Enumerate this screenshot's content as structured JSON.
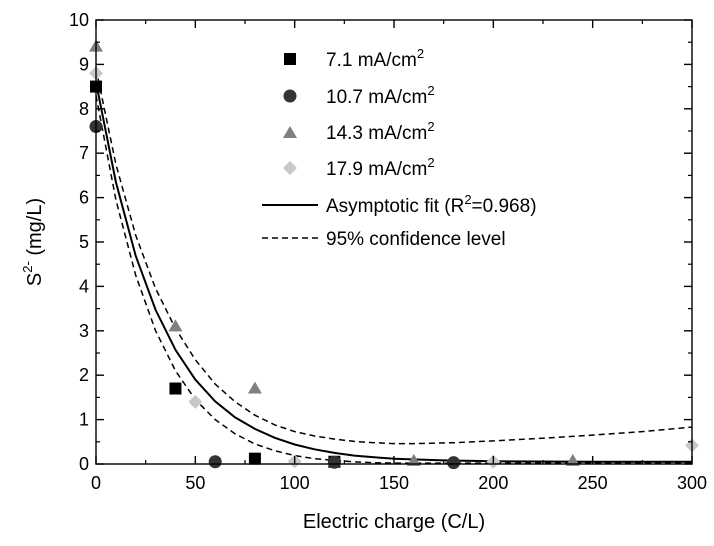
{
  "chart_data": {
    "type": "scatter",
    "xlabel": "Electric charge (C/L)",
    "ylabel": {
      "base": "S",
      "sup": "2-",
      "rest": " (mg/L)"
    },
    "xlim": [
      0,
      300
    ],
    "ylim": [
      0,
      10
    ],
    "xticks": [
      0,
      50,
      100,
      150,
      200,
      250,
      300
    ],
    "yticks": [
      0,
      1,
      2,
      3,
      4,
      5,
      6,
      7,
      8,
      9,
      10
    ],
    "grid": false,
    "legend_position": "top-right",
    "series": [
      {
        "name": {
          "base": "7.1 mA/cm",
          "sup": "2"
        },
        "marker": "square",
        "color": "#000000",
        "points": [
          [
            0,
            8.5
          ],
          [
            40,
            1.7
          ],
          [
            80,
            0.12
          ],
          [
            120,
            0.05
          ]
        ]
      },
      {
        "name": {
          "base": "10.7 mA/cm",
          "sup": "2"
        },
        "marker": "circle",
        "color": "#333333",
        "points": [
          [
            0,
            7.6
          ],
          [
            60,
            0.05
          ],
          [
            120,
            0.04
          ],
          [
            180,
            0.03
          ]
        ]
      },
      {
        "name": {
          "base": "14.3 mA/cm",
          "sup": "2"
        },
        "marker": "triangle",
        "color": "#808080",
        "points": [
          [
            0,
            9.4
          ],
          [
            40,
            3.1
          ],
          [
            80,
            1.7
          ],
          [
            160,
            0.07
          ],
          [
            240,
            0.07
          ]
        ]
      },
      {
        "name": {
          "base": "17.9 mA/cm",
          "sup": "2"
        },
        "marker": "diamond",
        "color": "#c8c8c8",
        "points": [
          [
            0,
            8.8
          ],
          [
            50,
            1.4
          ],
          [
            100,
            0.06
          ],
          [
            200,
            0.05
          ],
          [
            300,
            0.42
          ]
        ]
      }
    ],
    "fit": {
      "name": {
        "base": "Asymptotic fit (R",
        "sup": "2",
        "rest": "=0.968)"
      },
      "style": "solid",
      "points": [
        [
          0,
          8.6
        ],
        [
          10,
          6.35
        ],
        [
          20,
          4.69
        ],
        [
          30,
          3.47
        ],
        [
          40,
          2.57
        ],
        [
          50,
          1.9
        ],
        [
          60,
          1.41
        ],
        [
          70,
          1.05
        ],
        [
          80,
          0.79
        ],
        [
          90,
          0.59
        ],
        [
          100,
          0.44
        ],
        [
          110,
          0.33
        ],
        [
          120,
          0.25
        ],
        [
          130,
          0.19
        ],
        [
          140,
          0.15
        ],
        [
          150,
          0.12
        ],
        [
          175,
          0.08
        ],
        [
          200,
          0.06
        ],
        [
          250,
          0.05
        ],
        [
          300,
          0.05
        ]
      ]
    },
    "confidence_upper": {
      "name": "95% confidence level",
      "style": "dashed",
      "points": [
        [
          0,
          8.9
        ],
        [
          10,
          6.75
        ],
        [
          20,
          5.15
        ],
        [
          30,
          3.95
        ],
        [
          40,
          3.05
        ],
        [
          50,
          2.35
        ],
        [
          60,
          1.8
        ],
        [
          70,
          1.4
        ],
        [
          80,
          1.1
        ],
        [
          90,
          0.88
        ],
        [
          100,
          0.73
        ],
        [
          110,
          0.63
        ],
        [
          120,
          0.56
        ],
        [
          130,
          0.51
        ],
        [
          140,
          0.48
        ],
        [
          150,
          0.46
        ],
        [
          160,
          0.46
        ],
        [
          180,
          0.48
        ],
        [
          200,
          0.52
        ],
        [
          225,
          0.58
        ],
        [
          250,
          0.65
        ],
        [
          275,
          0.73
        ],
        [
          300,
          0.83
        ]
      ]
    },
    "confidence_lower": {
      "style": "dashed",
      "points": [
        [
          0,
          8.3
        ],
        [
          10,
          5.95
        ],
        [
          20,
          4.25
        ],
        [
          30,
          3.0
        ],
        [
          40,
          2.1
        ],
        [
          50,
          1.45
        ],
        [
          60,
          1.0
        ],
        [
          70,
          0.68
        ],
        [
          80,
          0.45
        ],
        [
          90,
          0.3
        ],
        [
          100,
          0.19
        ],
        [
          110,
          0.12
        ],
        [
          120,
          0.08
        ],
        [
          130,
          0.05
        ],
        [
          140,
          0.03
        ],
        [
          150,
          0.02
        ],
        [
          200,
          0.02
        ],
        [
          300,
          0.02
        ]
      ]
    }
  }
}
